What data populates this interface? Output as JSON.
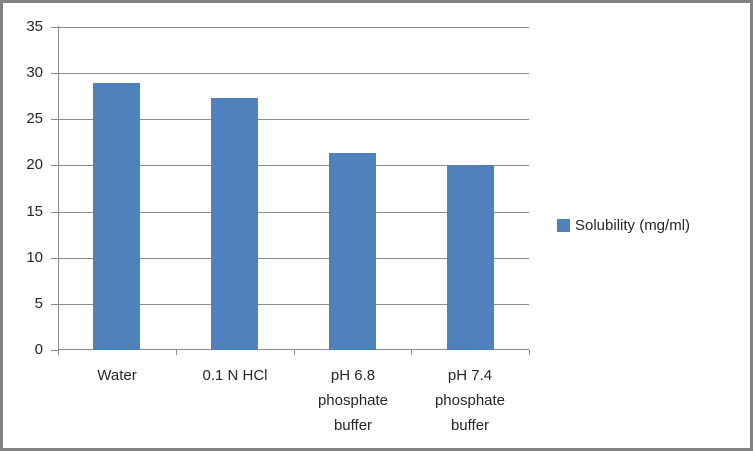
{
  "chart_data": {
    "type": "bar",
    "title": "",
    "xlabel": "",
    "ylabel": "",
    "categories": [
      "Water",
      "0.1 N HCl",
      "pH 6.8 phosphate buffer",
      "pH 7.4 phosphate buffer"
    ],
    "series": [
      {
        "name": "Solubility (mg/ml)",
        "values": [
          28.9,
          27.3,
          21.4,
          20.0
        ]
      }
    ],
    "ylim": [
      0,
      35
    ],
    "ytick_step": 5,
    "ytick_labels": [
      "0",
      "5",
      "10",
      "15",
      "20",
      "25",
      "30",
      "35"
    ],
    "grid": true,
    "legend_position": "right",
    "colors": {
      "bar": "#4F81BD",
      "gridline": "#8C8C8C",
      "axis": "#8C8C8C",
      "text": "#262626",
      "frame_border": "#828282",
      "background": "#FFFFFF"
    }
  }
}
